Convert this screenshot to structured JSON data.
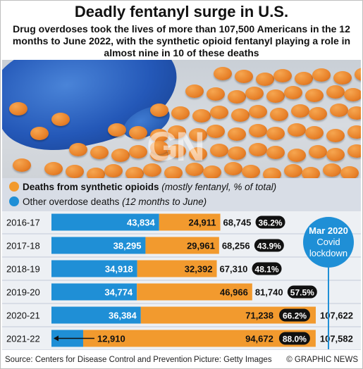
{
  "header": {
    "title": "Deadly fentanyl surge in U.S.",
    "subtitle": "Drug overdoses took the lives of more than 107,500 Americans in the 12 months to June 2022, with the synthetic opioid fentanyl playing a role in almost nine in 10 of these deaths"
  },
  "photo": {
    "watermark_logo": "GN",
    "watermark_text": "GRAPHIC NEWS"
  },
  "legend": {
    "synthetic_label": "Deaths from synthetic opioids",
    "synthetic_note": "(mostly fentanyl, % of total)",
    "other_label": "Other overdose deaths",
    "other_note": "(12 months to June)"
  },
  "callout": {
    "line1": "Mar 2020",
    "line2": "Covid",
    "line3": "lockdown"
  },
  "footer": {
    "source": "Source: Centers for Disease Control and Prevention",
    "picture": "Picture: Getty Images",
    "copyright": "© GRAPHIC NEWS"
  },
  "colors": {
    "other": "#1f8fd6",
    "synthetic": "#f29a2e",
    "pct_badge": "#111111",
    "background": "#d8dde6"
  },
  "chart_data": {
    "type": "bar",
    "orientation": "horizontal",
    "stacked": true,
    "categories": [
      "2016-17",
      "2017-18",
      "2018-19",
      "2019-20",
      "2020-21",
      "2021-22"
    ],
    "series": [
      {
        "name": "Other overdose deaths",
        "values": [
          43834,
          38295,
          34918,
          34774,
          36384,
          12910
        ]
      },
      {
        "name": "Deaths from synthetic opioids",
        "values": [
          24911,
          29961,
          32392,
          46966,
          71238,
          94672
        ]
      }
    ],
    "totals": [
      "68,745",
      "68,256",
      "67,310",
      "81,740",
      "107,622",
      "107,582"
    ],
    "other_labels": [
      "43,834",
      "38,295",
      "34,918",
      "34,774",
      "36,384",
      "12,910"
    ],
    "synthetic_labels": [
      "24,911",
      "29,961",
      "32,392",
      "46,966",
      "71,238",
      "94,672"
    ],
    "synthetic_share": [
      "36.2%",
      "43.9%",
      "48.1%",
      "57.5%",
      "66.2%",
      "88.0%"
    ],
    "xlim": [
      0,
      107622
    ]
  }
}
